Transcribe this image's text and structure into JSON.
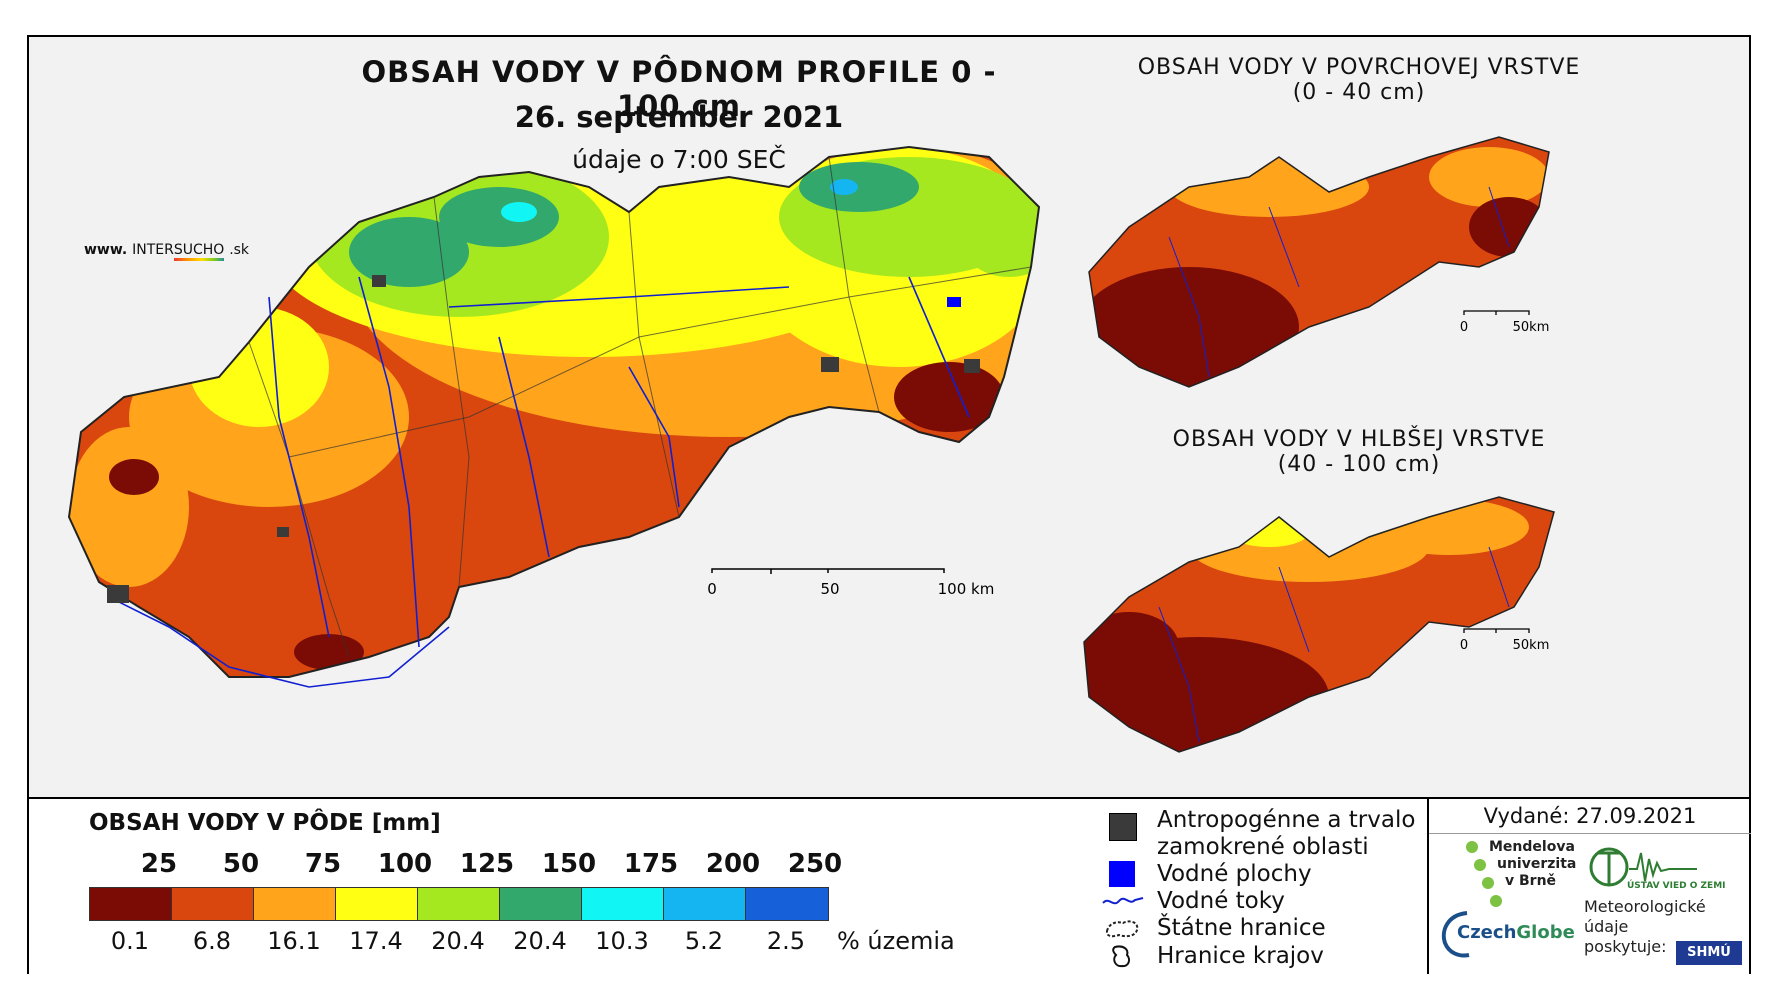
{
  "header": {
    "title": "OBSAH VODY V PÔDNOM PROFILE 0 - 100 cm",
    "date": "26. september 2021",
    "time": "údaje o 7:00 SEČ",
    "site_prefix": "www.",
    "site_mid": "INTER",
    "site_brand": "SUCHO",
    "site_suffix": ".sk"
  },
  "main_map": {
    "scale": {
      "labels": [
        "0",
        "50",
        "100 km"
      ]
    }
  },
  "inset_top": {
    "title_line1": "OBSAH VODY V POVRCHOVEJ VRSTVE",
    "title_line2": "(0 - 40 cm)",
    "scale": {
      "labels": [
        "0",
        "50km"
      ]
    }
  },
  "inset_bottom": {
    "title_line1": "OBSAH VODY V HLBŠEJ VRSTVE",
    "title_line2": "(40 - 100 cm)",
    "scale": {
      "labels": [
        "0",
        "50km"
      ]
    }
  },
  "legend": {
    "title": "OBSAH VODY V PÔDE [mm]",
    "thresholds": [
      "25",
      "50",
      "75",
      "100",
      "125",
      "150",
      "175",
      "200",
      "250"
    ],
    "bins": [
      {
        "color": "#7b0c05",
        "percent": "0.1"
      },
      {
        "color": "#d9470f",
        "percent": "6.8"
      },
      {
        "color": "#ffa41b",
        "percent": "16.1"
      },
      {
        "color": "#ffff14",
        "percent": "17.4"
      },
      {
        "color": "#a6e81f",
        "percent": "20.4"
      },
      {
        "color": "#33a86d",
        "percent": "20.4"
      },
      {
        "color": "#12f5f5",
        "percent": "10.3"
      },
      {
        "color": "#15b5f2",
        "percent": "5.2"
      },
      {
        "color": "#1660d9",
        "percent": "2.5"
      }
    ],
    "percent_unit": "% územia"
  },
  "symbols": {
    "urban": {
      "line1": "Antropogénne a trvalo",
      "line2": "zamokrené oblasti",
      "color": "#3a3a3a",
      "icon": "dark-square-icon"
    },
    "water_bodies": {
      "label": "Vodné plochy",
      "color": "#0000ff",
      "icon": "blue-square-icon"
    },
    "rivers": {
      "label": "Vodné toky",
      "color": "#1020d0",
      "icon": "river-line-icon"
    },
    "state_border": {
      "label": "Štátne hranice",
      "icon": "state-border-icon"
    },
    "region_border": {
      "label": "Hranice krajov",
      "icon": "region-border-icon"
    }
  },
  "credits": {
    "issued": "Vydané: 27.09.2021",
    "mendelu_line1": "Mendelova",
    "mendelu_line2": "univerzita",
    "mendelu_line3": "v Brně",
    "uvz_label": "ÚSTAV VIED O ZEMI",
    "czechglobe_prefix": "Czech",
    "czechglobe_suffix": "Globe",
    "shmu_line1": "Meteorologické",
    "shmu_line2": "údaje",
    "shmu_line3": "poskytuje:",
    "shmu_logo": "SHMÚ"
  }
}
